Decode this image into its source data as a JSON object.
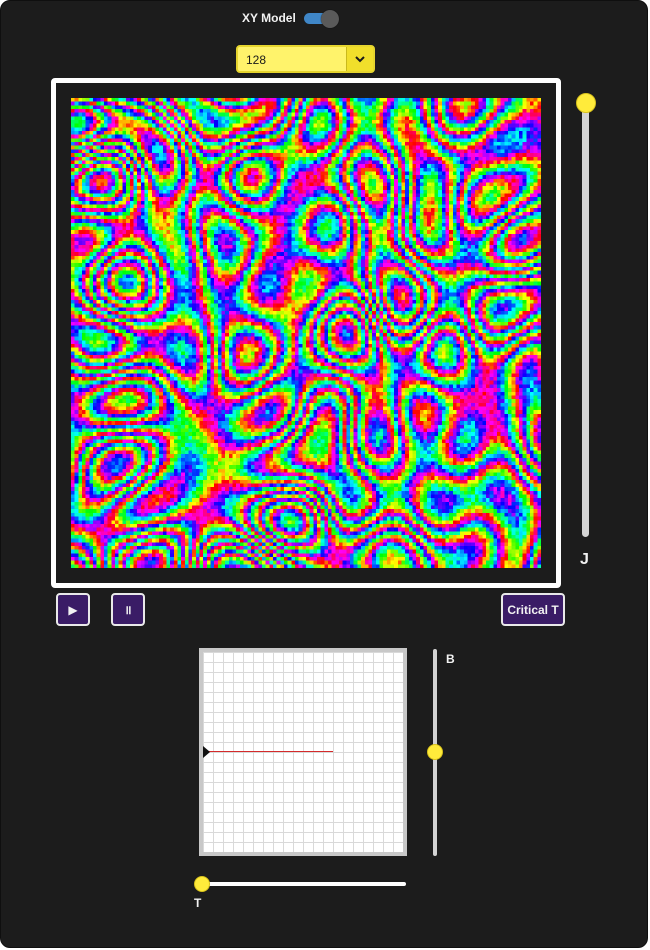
{
  "header": {
    "title": "XY Model",
    "toggle_on": true
  },
  "lattice_size": {
    "selected": "128"
  },
  "lattice": {
    "grid_size": 128
  },
  "sliders": {
    "J": {
      "label": "J",
      "level": 1.0
    },
    "B": {
      "label": "B",
      "level": 0.5
    },
    "T": {
      "label": "T",
      "level": 0.0
    }
  },
  "buttons": {
    "play": "▶",
    "pause": "॥",
    "critical": "Critical T"
  },
  "colors": {
    "panel": "#1c1c1c",
    "accent_yellow": "#ffeb3b",
    "button_bg": "#3a1c66",
    "toggle_track": "#3f86c7",
    "plot_line": "#d42a2a"
  },
  "icons": {
    "dropdown": "chevron-down-icon",
    "play": "play-icon",
    "pause": "pause-icon"
  }
}
